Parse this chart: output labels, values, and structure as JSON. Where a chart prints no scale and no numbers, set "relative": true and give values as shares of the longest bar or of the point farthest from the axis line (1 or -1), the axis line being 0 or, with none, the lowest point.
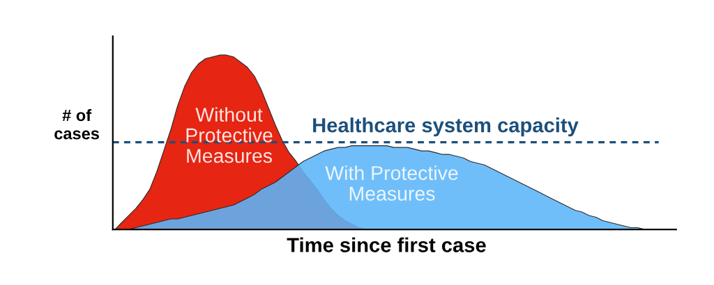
{
  "chart_data": {
    "type": "area",
    "relative": true,
    "categories": [
      null,
      null,
      null,
      null,
      null,
      null,
      null,
      null,
      null,
      null,
      null,
      null,
      null,
      null,
      null,
      null,
      null,
      null,
      null,
      null,
      null,
      null,
      null,
      null,
      null,
      null,
      null,
      null,
      null,
      null,
      null,
      null,
      null,
      null,
      null,
      null,
      null,
      null,
      null,
      null,
      null,
      null,
      null,
      null,
      null,
      null,
      null,
      null,
      null,
      null,
      null,
      null,
      null,
      null,
      null,
      null,
      null,
      null,
      null,
      null,
      null,
      null,
      null,
      null,
      null,
      null,
      null,
      null,
      null,
      null,
      null,
      null,
      null,
      null,
      null,
      null,
      null,
      null,
      null,
      null,
      null
    ],
    "xlabel": "Time since first case",
    "ylabel": "# of\ncases",
    "series": [
      {
        "name": "Without\nProtective\nMeasures",
        "color": "#e62512",
        "values": [
          0,
          0.04,
          0.08,
          0.12,
          0.17,
          0.23,
          0.33,
          0.45,
          0.57,
          0.71,
          0.82,
          0.9,
          0.95,
          0.98,
          0.99,
          1,
          1,
          0.99,
          0.96,
          0.93,
          0.88,
          0.8,
          0.7,
          0.6,
          0.51,
          0.44,
          0.39,
          0.33,
          0.28,
          0.23,
          0.17,
          0.12,
          0.08,
          0.05,
          0.03,
          0.01,
          0,
          0,
          0,
          0,
          0,
          0,
          0,
          0,
          0,
          0,
          0,
          0,
          0,
          0,
          0,
          0,
          0,
          0,
          0,
          0,
          0,
          0,
          0,
          0,
          0,
          0,
          0,
          0,
          0,
          0,
          0,
          0,
          0,
          0,
          0,
          0,
          0,
          0,
          0,
          0,
          0,
          0,
          0,
          0,
          0
        ]
      },
      {
        "name": "With Protective\nMeasures",
        "color": "#5cb5f8",
        "values": [
          0,
          0,
          0,
          0.01,
          0.02,
          0.03,
          0.04,
          0.05,
          0.06,
          0.06,
          0.07,
          0.08,
          0.09,
          0.1,
          0.11,
          0.12,
          0.13,
          0.14,
          0.16,
          0.18,
          0.2,
          0.23,
          0.25,
          0.27,
          0.3,
          0.33,
          0.36,
          0.39,
          0.41,
          0.43,
          0.45,
          0.46,
          0.47,
          0.47,
          0.48,
          0.48,
          0.48,
          0.48,
          0.48,
          0.48,
          0.47,
          0.47,
          0.47,
          0.46,
          0.45,
          0.45,
          0.44,
          0.43,
          0.43,
          0.42,
          0.41,
          0.39,
          0.38,
          0.37,
          0.35,
          0.33,
          0.31,
          0.29,
          0.27,
          0.25,
          0.23,
          0.21,
          0.19,
          0.17,
          0.15,
          0.13,
          0.11,
          0.1,
          0.08,
          0.07,
          0.05,
          0.04,
          0.03,
          0.02,
          0.01,
          0.01,
          0,
          0,
          0,
          0,
          0
        ]
      }
    ],
    "ref_lines": [
      {
        "axis": "y",
        "value": 0.5,
        "label": "Healthcare system capacity",
        "color": "#1c4f7c",
        "line_style": "dashed"
      }
    ],
    "legend": false
  }
}
